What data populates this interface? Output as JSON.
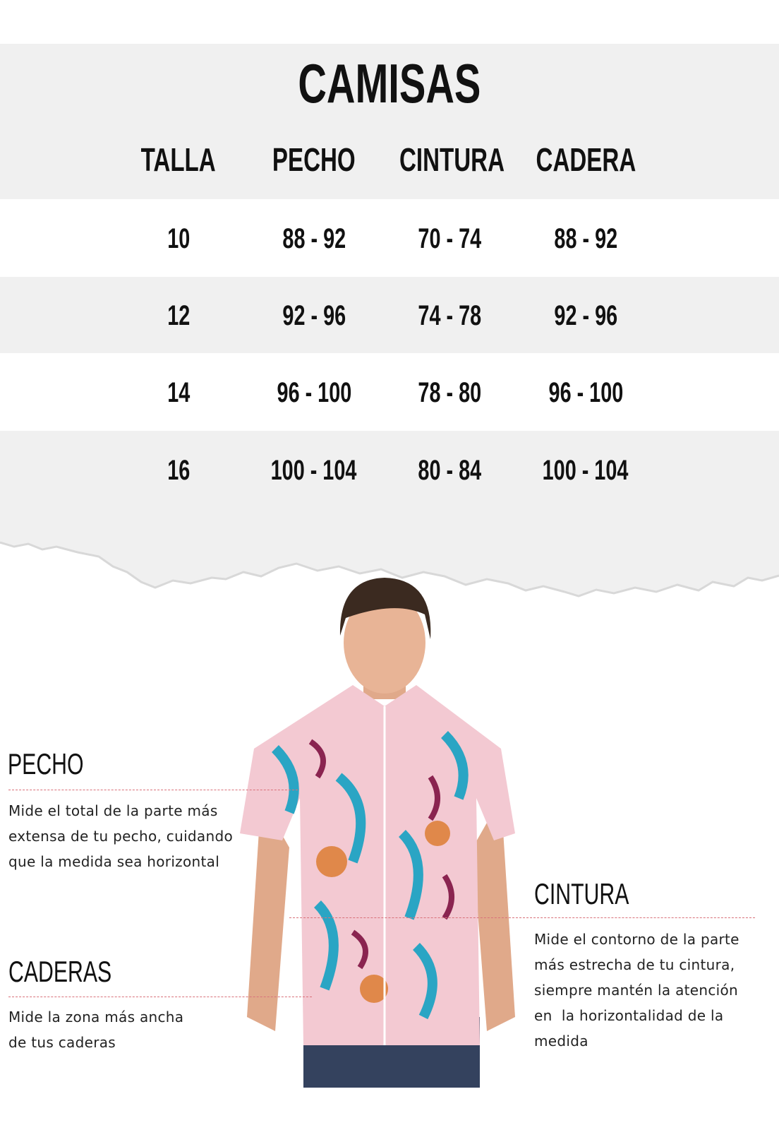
{
  "title": "CAMISAS",
  "table": {
    "headers": [
      "TALLA",
      "PECHO",
      "CINTURA",
      "CADERA"
    ],
    "rows": [
      [
        "10",
        "88 - 92",
        "70 - 74",
        "88 - 92"
      ],
      [
        "12",
        "92 - 96",
        "74 - 78",
        "92 - 96"
      ],
      [
        "14",
        "96 - 100",
        "78 - 80",
        "96 - 100"
      ],
      [
        "16",
        "100 - 104",
        "80 - 84",
        "100 - 104"
      ]
    ]
  },
  "guide": {
    "pecho": {
      "label": "PECHO",
      "lines": [
        "Mide el total de la parte más",
        "extensa de tu pecho, cuidando",
        "que la medida sea horizontal"
      ]
    },
    "caderas": {
      "label": "CADERAS",
      "lines": [
        "Mide la zona más ancha",
        "de tus caderas"
      ]
    },
    "cintura": {
      "label": "CINTURA",
      "lines": [
        "Mide el contorno de la parte",
        "más estrecha de tu cintura,",
        "siempre mantén la atención",
        "en  la horizontalidad de la",
        "medida"
      ]
    }
  },
  "colors": {
    "band_gray": "#f0f0f0",
    "dash_line": "#d9717a",
    "text": "#111111"
  }
}
